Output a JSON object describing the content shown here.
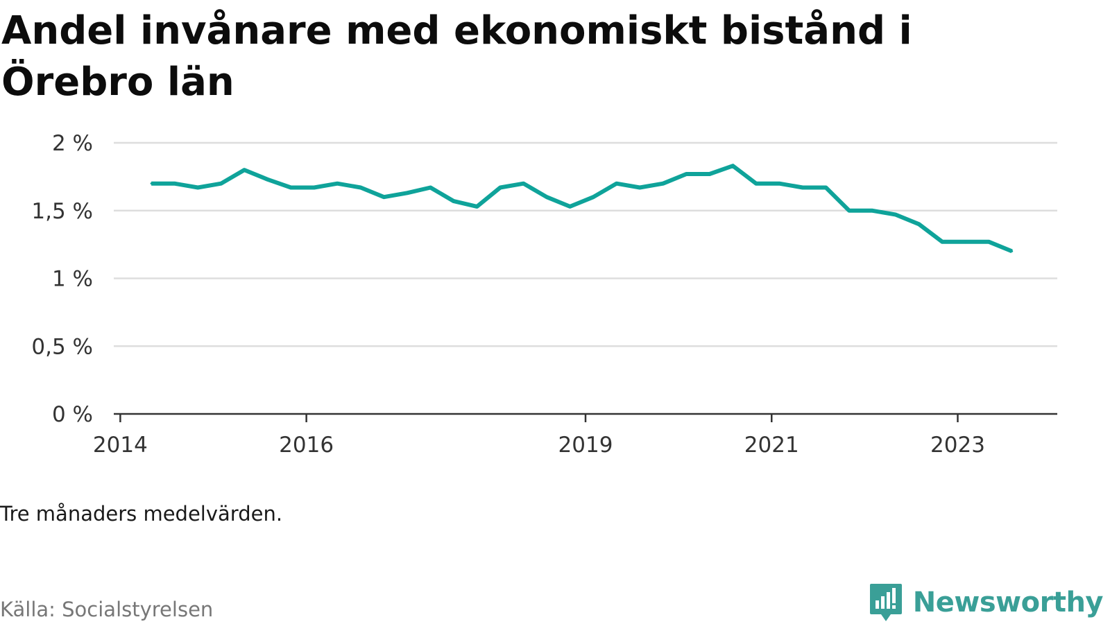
{
  "title": "Andel invånare med ekonomiskt bistånd i Örebro län",
  "note": "Tre månaders medelvärden.",
  "source": "Källa: Socialstyrelsen",
  "brand": {
    "name": "Newsworthy",
    "icon": "newsworthy-chart-bubble-icon"
  },
  "colors": {
    "line": "#0fa39a",
    "grid": "#dddddd",
    "axis": "#333333",
    "brand": "#3a9f97"
  },
  "chart_data": {
    "type": "line",
    "title": "Andel invånare med ekonomiskt bistånd i Örebro län",
    "xlabel": "",
    "ylabel": "",
    "ylim": [
      0,
      2
    ],
    "yticks": [
      0,
      0.5,
      1,
      1.5,
      2
    ],
    "ytick_labels": [
      "0 %",
      "0,5 %",
      "1 %",
      "1,5 %",
      "2 %"
    ],
    "xticks": [
      2014,
      2016,
      2019,
      2021,
      2023
    ],
    "xtick_labels": [
      "2014",
      "2016",
      "2019",
      "2021",
      "2023"
    ],
    "xlim": [
      2013.93,
      2024.07
    ],
    "grid": true,
    "legend": "none",
    "series": [
      {
        "x": [
          "2014-05",
          "2014-08",
          "2014-11",
          "2015-02",
          "2015-05",
          "2015-08",
          "2015-11",
          "2016-02",
          "2016-05",
          "2016-08",
          "2016-11",
          "2017-02",
          "2017-05",
          "2017-08",
          "2017-11",
          "2018-02",
          "2018-05",
          "2018-08",
          "2018-11",
          "2019-02",
          "2019-05",
          "2019-08",
          "2019-11",
          "2020-02",
          "2020-05",
          "2020-08",
          "2020-11",
          "2021-02",
          "2021-05",
          "2021-08",
          "2021-11",
          "2022-02",
          "2022-05",
          "2022-08",
          "2022-11",
          "2023-02",
          "2023-05",
          "2023-08"
        ],
        "values": [
          1.7,
          1.7,
          1.67,
          1.7,
          1.8,
          1.73,
          1.67,
          1.67,
          1.7,
          1.67,
          1.6,
          1.63,
          1.67,
          1.57,
          1.53,
          1.67,
          1.7,
          1.6,
          1.53,
          1.6,
          1.7,
          1.67,
          1.7,
          1.77,
          1.77,
          1.83,
          1.7,
          1.7,
          1.67,
          1.67,
          1.5,
          1.5,
          1.47,
          1.4,
          1.27,
          1.27,
          1.27,
          1.2
        ]
      }
    ]
  }
}
